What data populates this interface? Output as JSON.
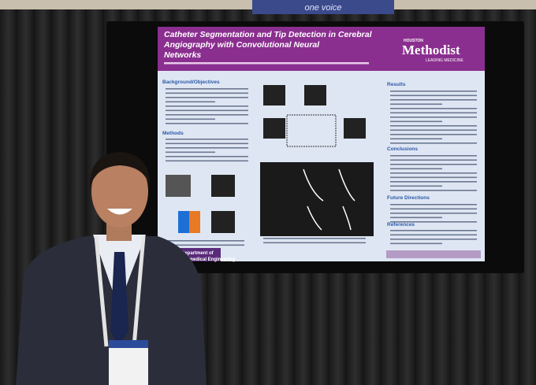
{
  "banner": "one voice",
  "poster": {
    "title_lines": [
      "Catheter Segmentation and Tip Detection in Cerebral",
      "Angiography with Convolutional Neural",
      "Networks"
    ],
    "logo": {
      "prefix": "HOUSTON",
      "name": "Methodist",
      "tagline": "LEADING MEDICINE"
    },
    "sections": [
      "Background/Objectives",
      "Methods",
      "Results",
      "Conclusions",
      "Future Directions",
      "References"
    ],
    "department": [
      "Department of",
      "Biomedical Engineering"
    ]
  }
}
